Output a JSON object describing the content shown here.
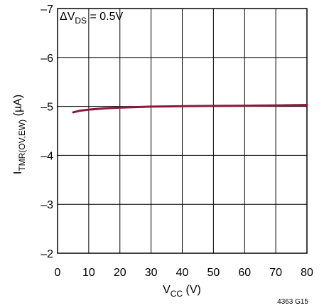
{
  "chart_data": {
    "type": "line",
    "annotation": {
      "prefix": "ΔV",
      "sub": "DS",
      "suffix": " = 0.5V"
    },
    "xlabel": {
      "main": "V",
      "sub": "CC",
      "suffix": " (V)"
    },
    "ylabel": {
      "main": "I",
      "sub": "TMR(OV,EW)",
      "suffix": " (µA)"
    },
    "xlim": [
      0,
      80
    ],
    "ylim": [
      -2,
      -7
    ],
    "x_ticks": [
      "0",
      "10",
      "20",
      "30",
      "40",
      "50",
      "60",
      "70",
      "80"
    ],
    "y_ticks": [
      "–2",
      "–3",
      "–4",
      "–5",
      "–6",
      "–7"
    ],
    "grid": true,
    "series": [
      {
        "color": "#8b1a3a",
        "x": [
          5,
          7,
          10,
          15,
          20,
          25,
          30,
          40,
          50,
          60,
          70,
          80
        ],
        "y": [
          -4.88,
          -4.91,
          -4.935,
          -4.96,
          -4.975,
          -4.985,
          -4.995,
          -5.005,
          -5.01,
          -5.015,
          -5.02,
          -5.03
        ]
      }
    ]
  },
  "figure_code": "4363 G15"
}
